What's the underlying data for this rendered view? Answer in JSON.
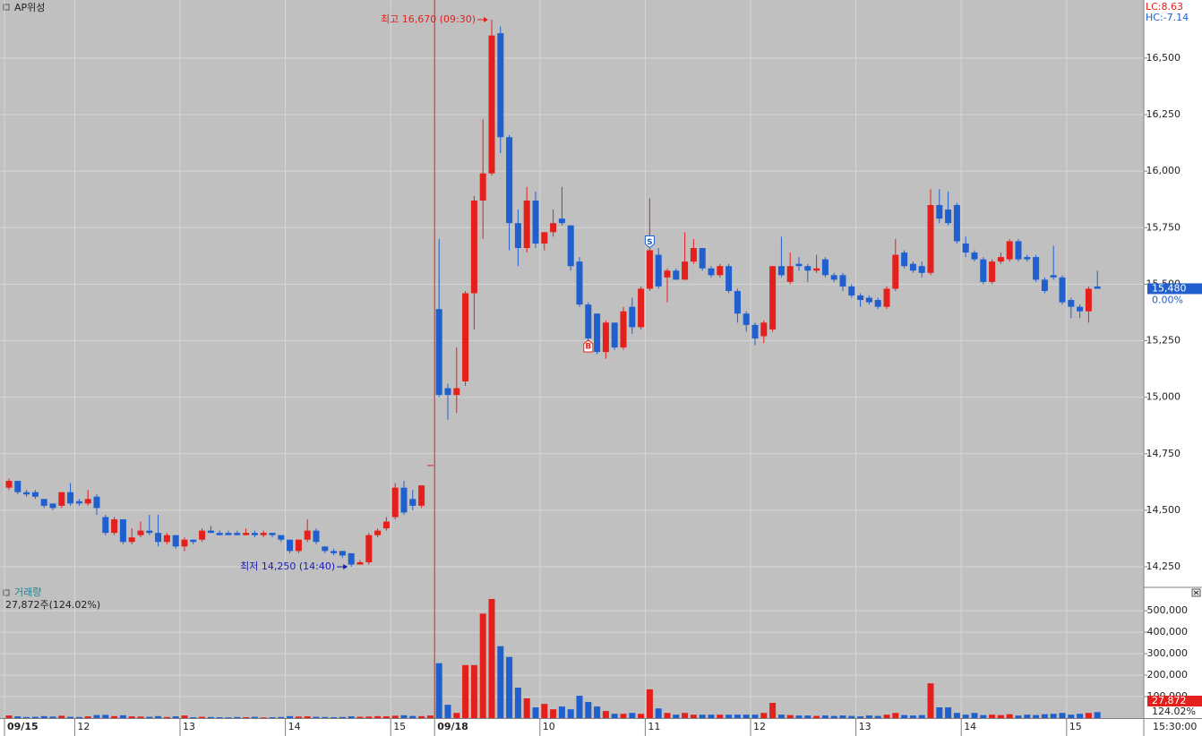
{
  "chart_data": {
    "type": "candlestick",
    "title": "AP위성",
    "lc_label": "LC:8.63",
    "hc_label": "HC:-7.14",
    "colors": {
      "up": "#e3201b",
      "down": "#1f5fce"
    },
    "grid": true,
    "ylim": [
      14163,
      16757
    ],
    "yticks": [
      {
        "value": 14250,
        "label": "14,250"
      },
      {
        "value": 14500,
        "label": "14,500"
      },
      {
        "value": 14750,
        "label": "14,750"
      },
      {
        "value": 15000,
        "label": "15,000"
      },
      {
        "value": 15250,
        "label": "15,250"
      },
      {
        "value": 15500,
        "label": "15,500"
      },
      {
        "value": 15750,
        "label": "15,750"
      },
      {
        "value": 16000,
        "label": "16,000"
      },
      {
        "value": 16250,
        "label": "16,250"
      },
      {
        "value": 16500,
        "label": "16,500"
      }
    ],
    "xticks": [
      {
        "value": 0,
        "label": "09/15"
      },
      {
        "value": 8,
        "label": "12"
      },
      {
        "value": 20,
        "label": "13"
      },
      {
        "value": 32,
        "label": "14"
      },
      {
        "value": 44,
        "label": "15"
      },
      {
        "value": 49,
        "label": "09/18"
      },
      {
        "value": 61,
        "label": "10"
      },
      {
        "value": 73,
        "label": "11"
      },
      {
        "value": 85,
        "label": "12"
      },
      {
        "value": 97,
        "label": "13"
      },
      {
        "value": 109,
        "label": "14"
      },
      {
        "value": 121,
        "label": "15"
      }
    ],
    "open": [
      14600,
      14630,
      14580,
      14580,
      14550,
      14530,
      14520,
      14580,
      14540,
      14530,
      14560,
      14470,
      14400,
      14460,
      14360,
      14390,
      14410,
      14400,
      14360,
      14390,
      14340,
      14370,
      14370,
      14410,
      14400,
      14400,
      14400,
      14390,
      14400,
      14390,
      14400,
      14390,
      14370,
      14320,
      14370,
      14410,
      14340,
      14320,
      14320,
      14310,
      14260,
      14270,
      14390,
      14420,
      14470,
      14600,
      14550,
      14520,
      14700,
      15390,
      15040,
      15010,
      15070,
      15460,
      15870,
      15990,
      16610,
      16150,
      15770,
      15660,
      15870,
      15680,
      15730,
      15790,
      15760,
      15600,
      15410,
      15370,
      15200,
      15330,
      15220,
      15400,
      15310,
      15480,
      15630,
      15530,
      15560,
      15520,
      15600,
      15660,
      15570,
      15540,
      15580,
      15470,
      15370,
      15320,
      15270,
      15300,
      15580,
      15510,
      15590,
      15580,
      15560,
      15610,
      15540,
      15540,
      15490,
      15450,
      15440,
      15430,
      15400,
      15480,
      15640,
      15590,
      15580,
      15550,
      15850,
      15830,
      15850,
      15680,
      15640,
      15610,
      15510,
      15600,
      15610,
      15690,
      15620,
      15620,
      15520,
      15540,
      15530,
      15430,
      15400,
      15380,
      15490
    ],
    "high": [
      14640,
      14630,
      14590,
      14590,
      14550,
      14530,
      14580,
      14620,
      14550,
      14590,
      14570,
      14480,
      14470,
      14460,
      14420,
      14450,
      14480,
      14480,
      14400,
      14390,
      14380,
      14370,
      14420,
      14430,
      14410,
      14410,
      14410,
      14420,
      14410,
      14410,
      14400,
      14390,
      14370,
      14370,
      14460,
      14420,
      14340,
      14330,
      14320,
      14310,
      14280,
      14400,
      14420,
      14470,
      14620,
      14630,
      14590,
      14610,
      14700,
      15700,
      15060,
      15220,
      15470,
      15890,
      16230,
      16670,
      16640,
      16160,
      15830,
      15930,
      15910,
      15730,
      15830,
      15930,
      15760,
      15620,
      15420,
      15370,
      15340,
      15330,
      15400,
      15440,
      15490,
      15880,
      15660,
      15570,
      15570,
      15730,
      15700,
      15660,
      15580,
      15590,
      15590,
      15480,
      15380,
      15330,
      15340,
      15580,
      15710,
      15640,
      15620,
      15590,
      15630,
      15620,
      15550,
      15550,
      15500,
      15460,
      15450,
      15440,
      15490,
      15700,
      15650,
      15600,
      15600,
      15920,
      15920,
      15910,
      15860,
      15710,
      15650,
      15620,
      15610,
      15640,
      15700,
      15700,
      15630,
      15630,
      15530,
      15670,
      15540,
      15440,
      15410,
      15490,
      15560
    ],
    "low": [
      14590,
      14570,
      14560,
      14550,
      14510,
      14500,
      14510,
      14520,
      14520,
      14520,
      14480,
      14390,
      14390,
      14350,
      14350,
      14380,
      14390,
      14340,
      14350,
      14330,
      14320,
      14350,
      14360,
      14400,
      14390,
      14390,
      14390,
      14390,
      14380,
      14380,
      14380,
      14360,
      14310,
      14310,
      14360,
      14350,
      14310,
      14300,
      14290,
      14250,
      14260,
      14260,
      14380,
      14410,
      14460,
      14480,
      14500,
      14510,
      14700,
      15000,
      14900,
      14930,
      15050,
      15300,
      15700,
      15980,
      16080,
      15650,
      15580,
      15640,
      15660,
      15650,
      15710,
      15760,
      15560,
      15400,
      15240,
      15190,
      15170,
      15210,
      15210,
      15280,
      15300,
      15470,
      15480,
      15420,
      15520,
      15520,
      15590,
      15560,
      15530,
      15530,
      15460,
      15330,
      15290,
      15230,
      15240,
      15290,
      15530,
      15500,
      15560,
      15510,
      15550,
      15530,
      15510,
      15470,
      15440,
      15400,
      15410,
      15390,
      15390,
      15470,
      15570,
      15550,
      15530,
      15540,
      15770,
      15760,
      15680,
      15620,
      15600,
      15500,
      15500,
      15590,
      15600,
      15600,
      15600,
      15510,
      15460,
      15520,
      15410,
      15350,
      15350,
      15330,
      15480
    ],
    "close": [
      14630,
      14580,
      14570,
      14560,
      14520,
      14510,
      14580,
      14530,
      14530,
      14550,
      14510,
      14400,
      14460,
      14360,
      14380,
      14410,
      14400,
      14360,
      14390,
      14340,
      14370,
      14360,
      14410,
      14400,
      14390,
      14390,
      14390,
      14400,
      14390,
      14400,
      14390,
      14370,
      14320,
      14370,
      14410,
      14360,
      14320,
      14310,
      14300,
      14260,
      14270,
      14390,
      14410,
      14450,
      14600,
      14490,
      14520,
      14610,
      14700,
      15010,
      15010,
      15040,
      15460,
      15870,
      15990,
      16600,
      16150,
      15770,
      15660,
      15870,
      15680,
      15730,
      15770,
      15770,
      15580,
      15410,
      15260,
      15200,
      15330,
      15220,
      15380,
      15310,
      15480,
      15650,
      15490,
      15560,
      15520,
      15600,
      15660,
      15570,
      15540,
      15580,
      15470,
      15370,
      15320,
      15260,
      15330,
      15580,
      15540,
      15580,
      15580,
      15560,
      15570,
      15540,
      15520,
      15490,
      15450,
      15430,
      15420,
      15400,
      15480,
      15630,
      15580,
      15560,
      15550,
      15850,
      15790,
      15770,
      15690,
      15640,
      15610,
      15510,
      15600,
      15620,
      15690,
      15610,
      15610,
      15520,
      15470,
      15530,
      15420,
      15400,
      15380,
      15480,
      15480
    ],
    "high_label": "최고 16,670 (09:30)",
    "low_label": "최저 14,250 (14:40)",
    "signals": [
      {
        "label": "B",
        "index": 66
      },
      {
        "label": "S",
        "index": 73
      }
    ],
    "last_price": {
      "value": 15480,
      "label": "15,480"
    },
    "last_change": "0.00%",
    "time_label": "15:30:00",
    "volume": {
      "title": "거래량",
      "summary": "27,872주(124.02%)",
      "ylim": [
        0,
        605000
      ],
      "yticks": [
        {
          "value": 100000,
          "label": "100,000"
        },
        {
          "value": 200000,
          "label": "200,000"
        },
        {
          "value": 300000,
          "label": "300,000"
        },
        {
          "value": 400000,
          "label": "400,000"
        },
        {
          "value": 500000,
          "label": "500,000"
        }
      ],
      "values": [
        12000,
        8000,
        5000,
        6000,
        9000,
        7000,
        11000,
        6000,
        5000,
        8000,
        14000,
        15000,
        9000,
        13000,
        8000,
        7000,
        6000,
        9000,
        5000,
        8000,
        12000,
        4000,
        6000,
        5000,
        4000,
        3000,
        5000,
        4000,
        6000,
        3000,
        4000,
        5000,
        9000,
        7000,
        8000,
        6000,
        5000,
        4000,
        5000,
        8000,
        6000,
        7000,
        9000,
        8000,
        11000,
        13000,
        10000,
        9000,
        12000,
        256000,
        62000,
        24000,
        247000,
        247000,
        487000,
        555000,
        335000,
        285000,
        142000,
        92000,
        50000,
        66000,
        41000,
        54000,
        41000,
        104000,
        75000,
        54000,
        33000,
        20000,
        20000,
        24000,
        20000,
        134000,
        45000,
        24000,
        16000,
        24000,
        16000,
        16000,
        16000,
        16000,
        16000,
        16000,
        16000,
        16000,
        24000,
        71000,
        16000,
        14000,
        12000,
        12000,
        10000,
        12000,
        10000,
        12000,
        10000,
        8000,
        12000,
        10000,
        16000,
        24000,
        14000,
        12000,
        14000,
        162000,
        50000,
        50000,
        24000,
        16000,
        24000,
        14000,
        16000,
        14000,
        18000,
        12000,
        16000,
        14000,
        18000,
        20000,
        24000,
        16000,
        20000,
        24000,
        27872
      ],
      "last": {
        "value": 27872,
        "label": "27,872"
      },
      "last_change": "124.02%"
    }
  }
}
